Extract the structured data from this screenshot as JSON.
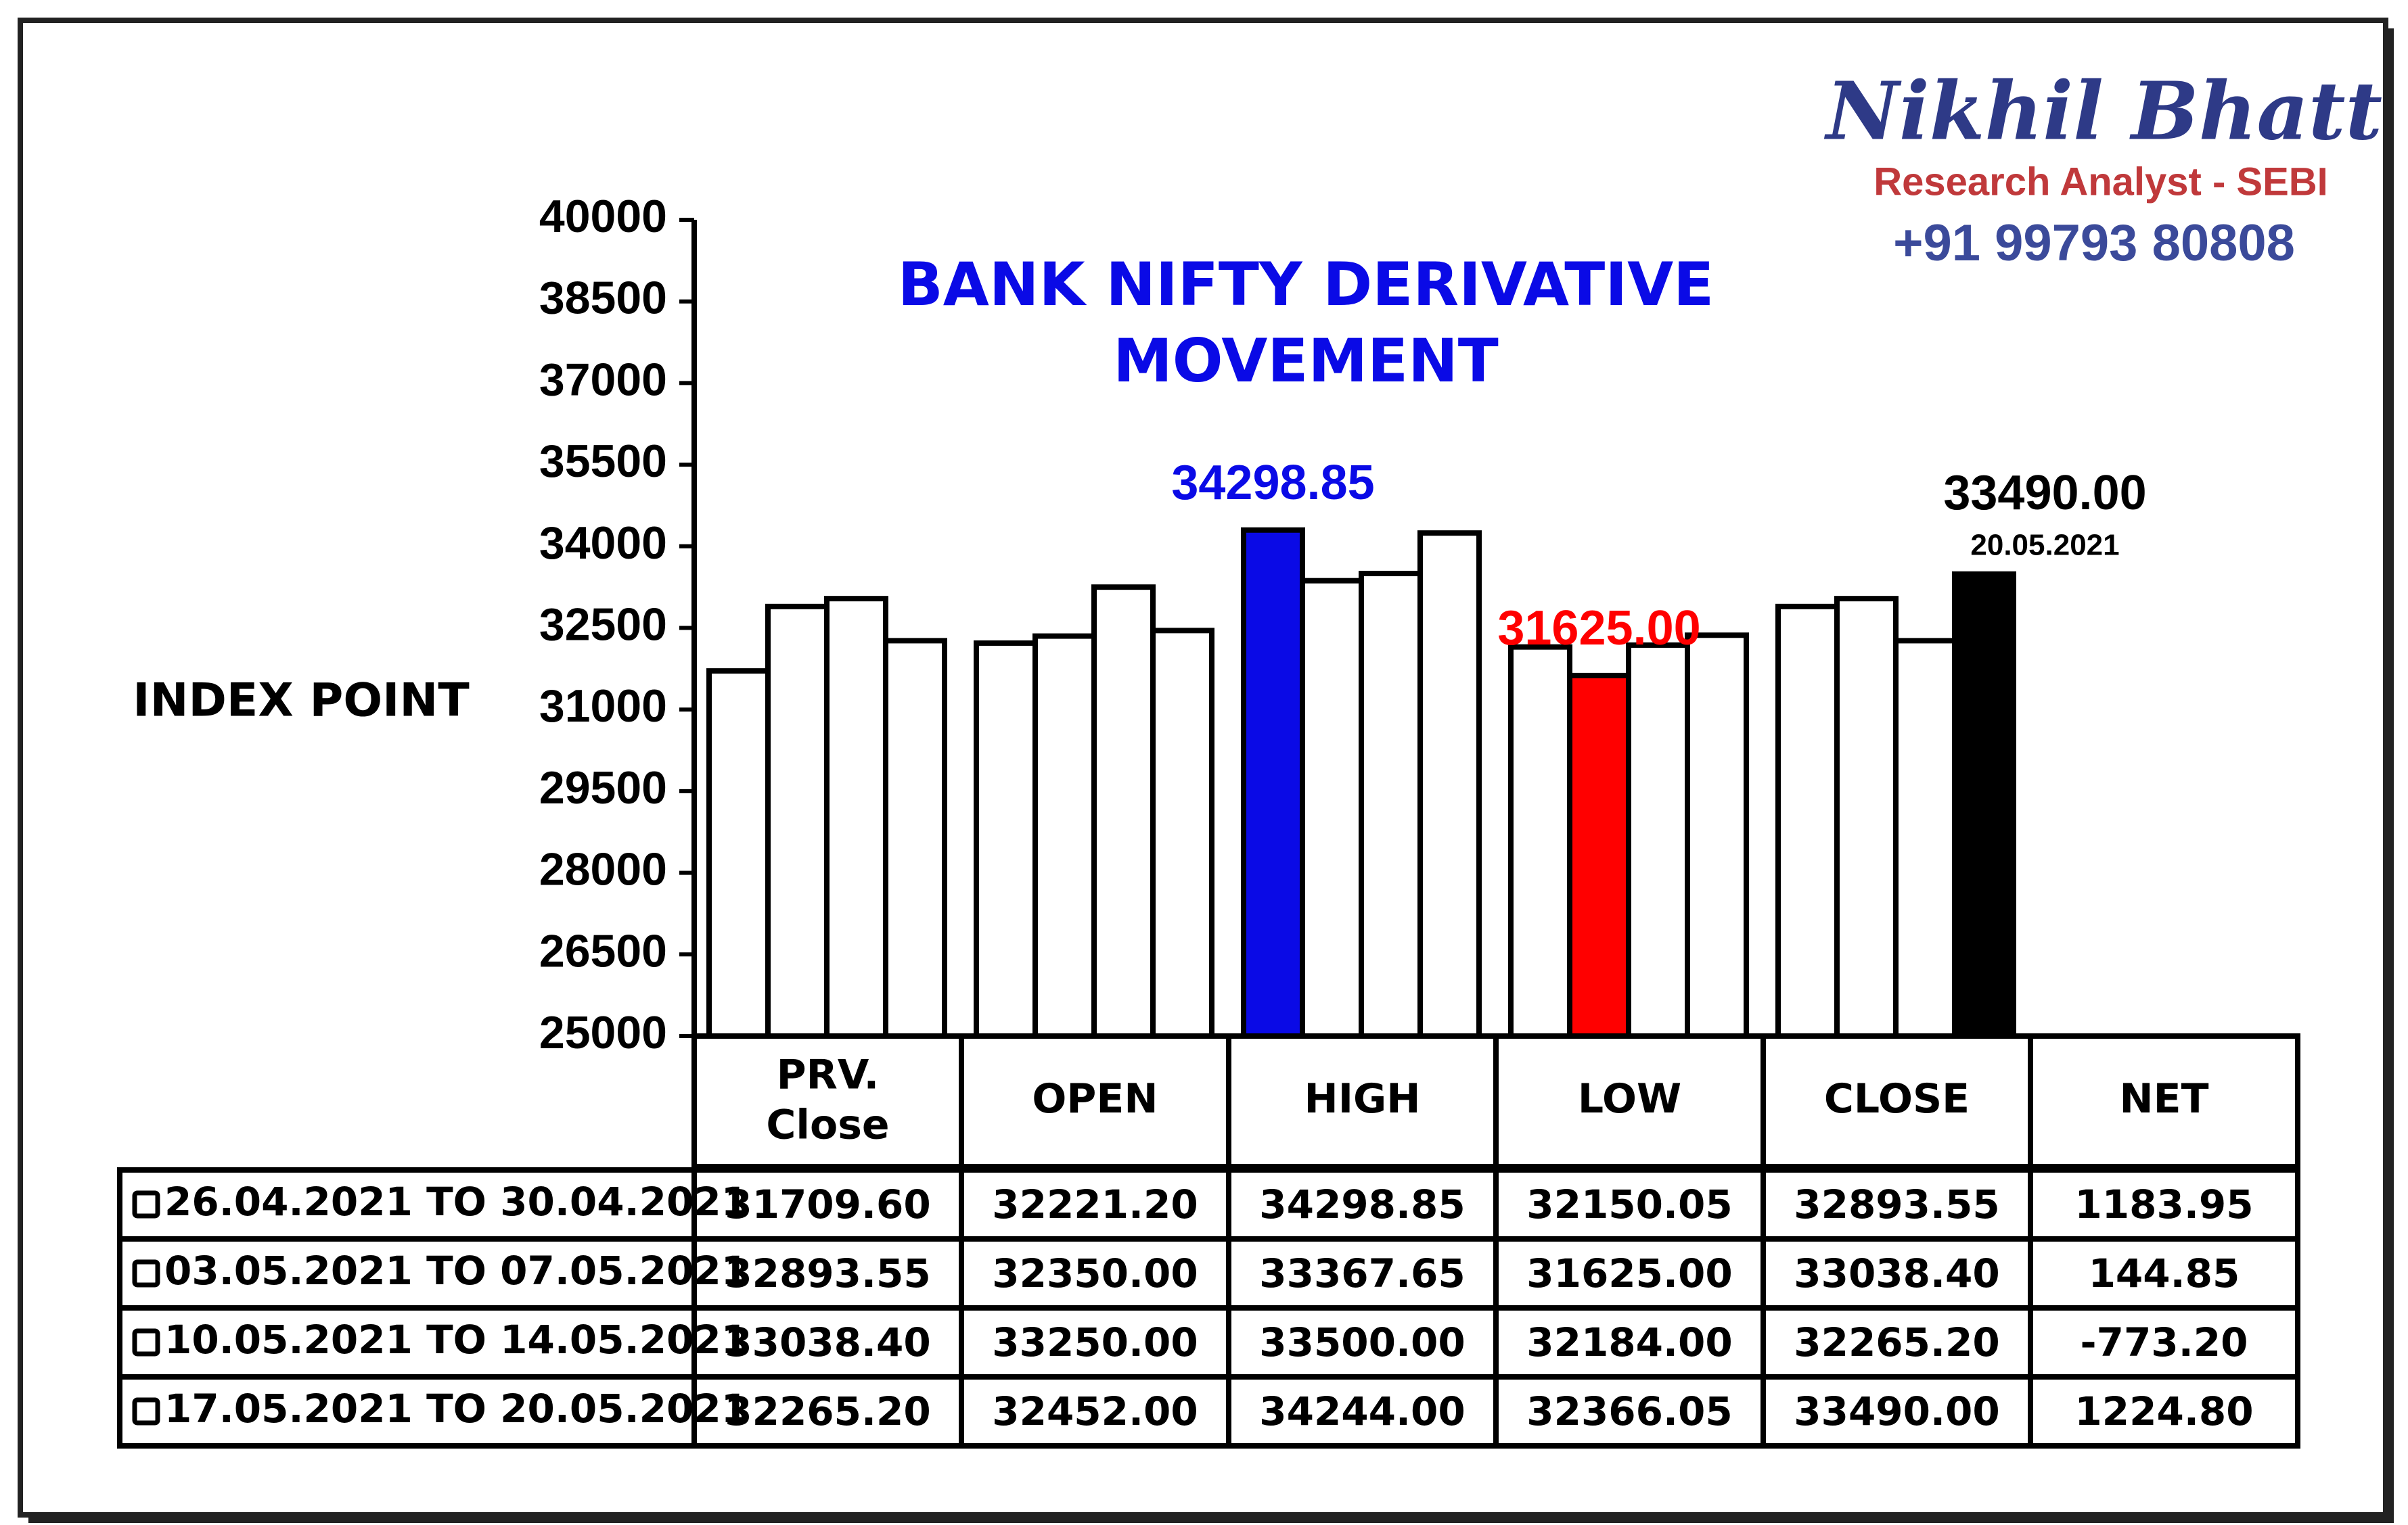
{
  "header": {
    "name": "Nikhil Bhatt",
    "role": "Research Analyst - SEBI",
    "phone": "+91 99793 80808"
  },
  "chart_data": {
    "type": "bar",
    "title": [
      "BANK NIFTY DERIVATIVE",
      "MOVEMENT"
    ],
    "y_label": "INDEX POINT",
    "categories": [
      "PRV.\nClose",
      "OPEN",
      "HIGH",
      "LOW",
      "CLOSE"
    ],
    "net_label": "NET",
    "ylim": [
      25000,
      40000
    ],
    "yticks": [
      25000,
      26500,
      28000,
      29500,
      31000,
      32500,
      34000,
      35500,
      37000,
      38500,
      40000
    ],
    "series": [
      {
        "name": "26.04.2021 TO 30.04.2021",
        "color": "#ffffff",
        "values": [
          31709.6,
          32221.2,
          34298.85,
          32150.05,
          32893.55
        ],
        "value_labels": [
          "31709.60",
          "32221.20",
          "34298.85",
          "32150.05",
          "32893.55"
        ],
        "net": "1183.95"
      },
      {
        "name": "03.05.2021 TO 07.05.2021",
        "color": "#ffffff",
        "values": [
          32893.55,
          32350,
          33367.65,
          31625,
          33038.4
        ],
        "value_labels": [
          "32893.55",
          "32350.00",
          "33367.65",
          "31625.00",
          "33038.40"
        ],
        "net": "144.85"
      },
      {
        "name": "10.05.2021 TO 14.05.2021",
        "color": "#ffffff",
        "values": [
          33038.4,
          33250,
          33500,
          32184,
          32265.2
        ],
        "value_labels": [
          "33038.40",
          "33250.00",
          "33500.00",
          "32184.00",
          "32265.20"
        ],
        "net": "-773.20"
      },
      {
        "name": "17.05.2021 TO 20.05.2021",
        "color": "#ffffff",
        "values": [
          32265.2,
          32452,
          34244,
          32366.05,
          33490
        ],
        "value_labels": [
          "32265.20",
          "32452.00",
          "34244.00",
          "32366.05",
          "33490.00"
        ],
        "net": "1224.80"
      }
    ],
    "highlights": [
      {
        "series": 0,
        "index": 2,
        "color": "#0a0ae6"
      },
      {
        "series": 1,
        "index": 3,
        "color": "#ff0000"
      },
      {
        "series": 3,
        "index": 4,
        "color": "#000000",
        "note": "20.05.2021"
      }
    ]
  }
}
